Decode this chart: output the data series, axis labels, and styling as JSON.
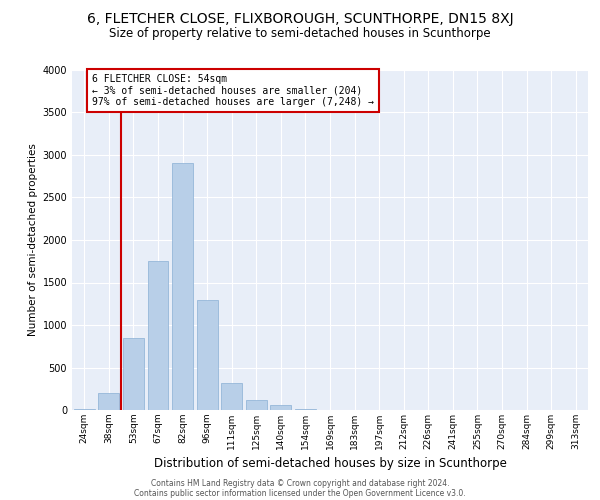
{
  "title": "6, FLETCHER CLOSE, FLIXBOROUGH, SCUNTHORPE, DN15 8XJ",
  "subtitle": "Size of property relative to semi-detached houses in Scunthorpe",
  "xlabel": "Distribution of semi-detached houses by size in Scunthorpe",
  "ylabel": "Number of semi-detached properties",
  "footer1": "Contains HM Land Registry data © Crown copyright and database right 2024.",
  "footer2": "Contains public sector information licensed under the Open Government Licence v3.0.",
  "categories": [
    "24sqm",
    "38sqm",
    "53sqm",
    "67sqm",
    "82sqm",
    "96sqm",
    "111sqm",
    "125sqm",
    "140sqm",
    "154sqm",
    "169sqm",
    "183sqm",
    "197sqm",
    "212sqm",
    "226sqm",
    "241sqm",
    "255sqm",
    "270sqm",
    "284sqm",
    "299sqm",
    "313sqm"
  ],
  "values": [
    10,
    200,
    850,
    1750,
    2900,
    1300,
    320,
    115,
    60,
    15,
    5,
    2,
    0,
    0,
    0,
    0,
    0,
    0,
    0,
    0,
    0
  ],
  "bar_color": "#b8cfe8",
  "bar_edge_color": "#8aafd4",
  "bar_width": 0.85,
  "annotation_text_line1": "6 FLETCHER CLOSE: 54sqm",
  "annotation_text_line2": "← 3% of semi-detached houses are smaller (204)",
  "annotation_text_line3": "97% of semi-detached houses are larger (7,248) →",
  "vline_color": "#cc0000",
  "vline_x": 1.5,
  "annotation_box_color": "#cc0000",
  "ylim": [
    0,
    4000
  ],
  "yticks": [
    0,
    500,
    1000,
    1500,
    2000,
    2500,
    3000,
    3500,
    4000
  ],
  "plot_bg_color": "#e8eef8",
  "title_fontsize": 10,
  "subtitle_fontsize": 8.5,
  "xlabel_fontsize": 8.5,
  "ylabel_fontsize": 7.5
}
